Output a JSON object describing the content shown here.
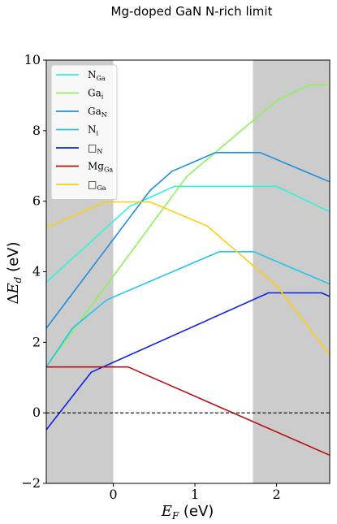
{
  "chart_data": {
    "type": "line",
    "title": "Mg-doped GaN N-rich limit",
    "xlabel": "E_F (eV)",
    "ylabel": "ΔE_d (eV)",
    "xlim": [
      -0.82,
      2.65
    ],
    "ylim": [
      -2,
      10
    ],
    "xticks": [
      0,
      1,
      2
    ],
    "yticks": [
      -2,
      0,
      2,
      4,
      6,
      8,
      10
    ],
    "shaded_regions": [
      [
        -0.82,
        0
      ],
      [
        1.71,
        2.65
      ]
    ],
    "shade_color": "#cccccc",
    "zero_line": {
      "y": 0,
      "style": "dashed",
      "color": "#000000"
    },
    "legend_position": "upper-left",
    "series": [
      {
        "name": "N_Ga",
        "main": "N",
        "sub": "Ga",
        "color": "#2ff5d8",
        "x": [
          -0.82,
          0.2,
          0.75,
          2.0,
          2.65
        ],
        "y": [
          3.7,
          5.85,
          6.42,
          6.42,
          5.7
        ]
      },
      {
        "name": "Ga_i",
        "main": "Ga",
        "sub": "i",
        "color": "#8cf55a",
        "x": [
          -0.82,
          0.9,
          2.0,
          2.4,
          2.65
        ],
        "y": [
          1.3,
          6.7,
          8.85,
          9.3,
          9.3
        ]
      },
      {
        "name": "Ga_N",
        "main": "Ga",
        "sub": "N",
        "color": "#1c8ee0",
        "x": [
          -0.82,
          0.45,
          0.72,
          1.25,
          1.8,
          2.65
        ],
        "y": [
          2.4,
          6.3,
          6.85,
          7.38,
          7.38,
          6.55
        ]
      },
      {
        "name": "N_i",
        "main": "N",
        "sub": "i",
        "color": "#1ec6f0",
        "x": [
          -0.82,
          -0.5,
          -0.08,
          1.3,
          1.72,
          2.65
        ],
        "y": [
          1.3,
          2.4,
          3.2,
          4.57,
          4.57,
          3.65
        ]
      },
      {
        "name": "□_N",
        "main": "□",
        "sub": "N",
        "color": "#0e22e8",
        "x": [
          -0.82,
          -0.27,
          1.9,
          2.55,
          2.65
        ],
        "y": [
          -0.48,
          1.15,
          3.4,
          3.4,
          3.3
        ]
      },
      {
        "name": "Mg_Ga",
        "main": "Mg",
        "sub": "Ga",
        "color": "#b80f0f",
        "x": [
          -0.82,
          0.18,
          2.65
        ],
        "y": [
          1.3,
          1.3,
          -1.2
        ]
      },
      {
        "name": "□_Ga",
        "main": "□",
        "sub": "Ga",
        "color": "#ffcf0f",
        "x": [
          -0.82,
          -0.1,
          0.45,
          1.15,
          2.0,
          2.65
        ],
        "y": [
          5.25,
          5.98,
          5.98,
          5.3,
          3.6,
          1.65
        ]
      }
    ]
  }
}
